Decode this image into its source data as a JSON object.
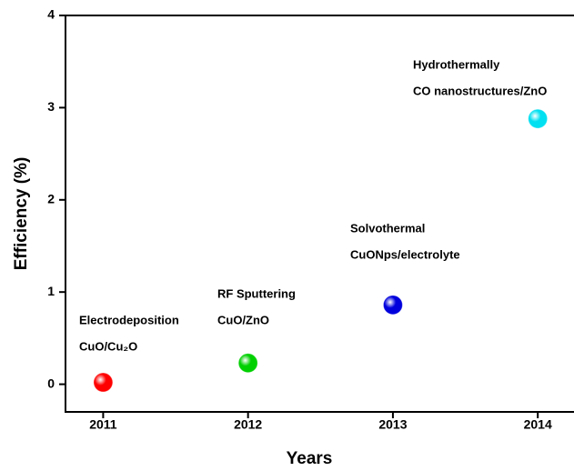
{
  "chart_data": {
    "type": "scatter",
    "xlabel": "Years",
    "ylabel": "Efficiency (%)",
    "x": [
      2011,
      2012,
      2013,
      2014
    ],
    "values": [
      0.02,
      0.23,
      0.86,
      2.88
    ],
    "colors": [
      "#ff0000",
      "#00d000",
      "#0000dd",
      "#00e0f0"
    ],
    "annotations": [
      {
        "lines": [
          "Electrodeposition",
          "CuO/Cu₂O"
        ]
      },
      {
        "lines": [
          "RF Sputtering",
          "CuO/ZnO"
        ]
      },
      {
        "lines": [
          "Solvothermal",
          "CuONps/electrolyte"
        ]
      },
      {
        "lines": [
          "Hydrothermally",
          "CO nanostructures/ZnO"
        ]
      }
    ],
    "xlim": [
      2010.74,
      2014.25
    ],
    "xticks": [
      2011,
      2012,
      2013,
      2014
    ],
    "ylim": [
      -0.3,
      4
    ],
    "yticks": [
      0,
      1,
      2,
      3,
      4
    ]
  }
}
